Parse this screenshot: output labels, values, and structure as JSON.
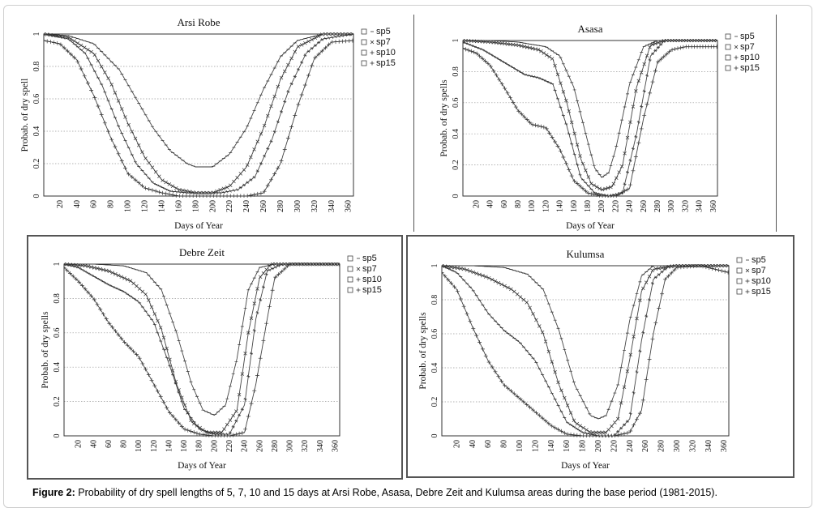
{
  "caption": {
    "label": "Figure 2:",
    "text": " Probability of dry spell lengths of 5, 7, 10 and 15 days at Arsi Robe, Asasa, Debre Zeit and Kulumsa areas during the base period (1981-2015)."
  },
  "chart_data": [
    {
      "type": "line",
      "title": "Arsi Robe",
      "xlabel": "Days of Year",
      "ylabel": "Probab. of dry spell",
      "xlim": [
        1,
        366
      ],
      "ylim": [
        0,
        1
      ],
      "xticks": [
        "20",
        "40",
        "60",
        "80",
        "100",
        "120",
        "140",
        "160",
        "180",
        "200",
        "220",
        "240",
        "260",
        "280",
        "300",
        "320",
        "340",
        "360"
      ],
      "yticks": [
        "0",
        "0.2",
        "0.4",
        "0.6",
        "0.8",
        "1"
      ],
      "grid": "horizontal dotted",
      "legend_position": "right",
      "series": [
        {
          "name": "sp5",
          "x": [
            1,
            30,
            60,
            90,
            110,
            130,
            150,
            170,
            180,
            200,
            220,
            240,
            260,
            280,
            300,
            330,
            366
          ],
          "y": [
            1,
            0.99,
            0.94,
            0.78,
            0.6,
            0.42,
            0.28,
            0.2,
            0.18,
            0.18,
            0.26,
            0.42,
            0.66,
            0.86,
            0.96,
            1,
            1
          ]
        },
        {
          "name": "sp7",
          "x": [
            1,
            30,
            60,
            80,
            100,
            120,
            140,
            160,
            180,
            200,
            220,
            240,
            260,
            280,
            300,
            330,
            366
          ],
          "y": [
            1,
            0.98,
            0.88,
            0.7,
            0.45,
            0.24,
            0.1,
            0.04,
            0.02,
            0.02,
            0.06,
            0.18,
            0.42,
            0.72,
            0.92,
            1,
            1
          ]
        },
        {
          "name": "sp10",
          "x": [
            1,
            30,
            50,
            70,
            90,
            110,
            130,
            150,
            170,
            190,
            210,
            230,
            250,
            270,
            290,
            310,
            330,
            366
          ],
          "y": [
            1,
            0.97,
            0.88,
            0.68,
            0.42,
            0.2,
            0.08,
            0.03,
            0.02,
            0.02,
            0.02,
            0.04,
            0.12,
            0.35,
            0.66,
            0.88,
            0.97,
            1
          ]
        },
        {
          "name": "sp15",
          "x": [
            1,
            20,
            40,
            60,
            80,
            100,
            120,
            140,
            160,
            180,
            200,
            220,
            240,
            260,
            280,
            300,
            320,
            340,
            366
          ],
          "y": [
            0.96,
            0.94,
            0.84,
            0.62,
            0.36,
            0.14,
            0.05,
            0.02,
            0,
            0,
            0,
            0,
            0,
            0.02,
            0.2,
            0.55,
            0.85,
            0.95,
            0.96
          ]
        }
      ]
    },
    {
      "type": "line",
      "title": "Asasa",
      "xlabel": "Days of Year",
      "ylabel": "Probab. of dry spells",
      "xlim": [
        1,
        366
      ],
      "ylim": [
        0,
        1
      ],
      "xticks": [
        "20",
        "40",
        "60",
        "80",
        "100",
        "120",
        "140",
        "160",
        "180",
        "200",
        "220",
        "240",
        "260",
        "280",
        "300",
        "320",
        "340",
        "360"
      ],
      "yticks": [
        "0",
        "0.2",
        "0.4",
        "0.6",
        "0.8",
        "1"
      ],
      "grid": "horizontal dotted",
      "legend_position": "right",
      "series": [
        {
          "name": "sp5",
          "x": [
            1,
            40,
            80,
            120,
            140,
            160,
            180,
            190,
            200,
            210,
            220,
            240,
            260,
            280,
            300,
            340,
            366
          ],
          "y": [
            1,
            1,
            0.99,
            0.96,
            0.9,
            0.7,
            0.35,
            0.18,
            0.12,
            0.15,
            0.3,
            0.72,
            0.96,
            1,
            1,
            1,
            1
          ]
        },
        {
          "name": "sp7",
          "x": [
            1,
            40,
            80,
            110,
            130,
            150,
            170,
            185,
            200,
            215,
            230,
            250,
            270,
            290,
            320,
            366
          ],
          "y": [
            1,
            0.99,
            0.97,
            0.94,
            0.88,
            0.6,
            0.24,
            0.08,
            0.04,
            0.06,
            0.2,
            0.7,
            0.97,
            1,
            1,
            1
          ]
        },
        {
          "name": "sp10",
          "x": [
            1,
            30,
            60,
            90,
            110,
            130,
            150,
            170,
            190,
            210,
            230,
            250,
            270,
            290,
            320,
            366
          ],
          "y": [
            0.99,
            0.94,
            0.86,
            0.78,
            0.76,
            0.72,
            0.45,
            0.12,
            0.02,
            0,
            0.02,
            0.4,
            0.9,
            1,
            1,
            1
          ]
        },
        {
          "name": "sp15",
          "x": [
            1,
            20,
            40,
            60,
            80,
            100,
            120,
            140,
            160,
            180,
            200,
            220,
            240,
            260,
            280,
            300,
            320,
            340,
            366
          ],
          "y": [
            0.95,
            0.92,
            0.84,
            0.7,
            0.55,
            0.46,
            0.44,
            0.3,
            0.1,
            0.02,
            0,
            0,
            0.05,
            0.5,
            0.86,
            0.94,
            0.96,
            0.96,
            0.96
          ]
        }
      ]
    },
    {
      "type": "line",
      "title": "Debre Zeit",
      "xlabel": "Days of Year",
      "ylabel": "Probab. of dry spells",
      "xlim": [
        1,
        366
      ],
      "ylim": [
        0,
        1
      ],
      "xticks": [
        "20",
        "40",
        "60",
        "80",
        "100",
        "120",
        "140",
        "160",
        "180",
        "200",
        "220",
        "240",
        "260",
        "280",
        "300",
        "320",
        "340",
        "360"
      ],
      "yticks": [
        "0",
        "0.2",
        "0.4",
        "0.6",
        "0.8",
        "1"
      ],
      "grid": "horizontal dotted",
      "legend_position": "right",
      "series": [
        {
          "name": "sp5",
          "x": [
            1,
            40,
            80,
            110,
            130,
            150,
            170,
            185,
            200,
            215,
            230,
            245,
            260,
            280,
            320,
            366
          ],
          "y": [
            1,
            1,
            0.99,
            0.95,
            0.85,
            0.6,
            0.3,
            0.15,
            0.12,
            0.18,
            0.45,
            0.85,
            0.98,
            1,
            1,
            1
          ]
        },
        {
          "name": "sp7",
          "x": [
            1,
            30,
            60,
            90,
            110,
            130,
            150,
            170,
            190,
            210,
            230,
            245,
            260,
            275,
            300,
            366
          ],
          "y": [
            1,
            0.99,
            0.96,
            0.9,
            0.82,
            0.62,
            0.3,
            0.08,
            0.02,
            0.02,
            0.15,
            0.6,
            0.92,
            1,
            1,
            1
          ]
        },
        {
          "name": "sp10",
          "x": [
            1,
            20,
            40,
            60,
            80,
            100,
            120,
            140,
            160,
            180,
            200,
            220,
            240,
            255,
            270,
            290,
            320,
            366
          ],
          "y": [
            1,
            0.98,
            0.93,
            0.88,
            0.84,
            0.78,
            0.66,
            0.42,
            0.16,
            0.04,
            0.01,
            0.01,
            0.18,
            0.68,
            0.96,
            1,
            1,
            1
          ]
        },
        {
          "name": "sp15",
          "x": [
            1,
            20,
            40,
            60,
            80,
            100,
            120,
            140,
            160,
            180,
            200,
            220,
            240,
            255,
            270,
            280,
            300,
            330,
            366
          ],
          "y": [
            0.98,
            0.9,
            0.8,
            0.66,
            0.55,
            0.46,
            0.3,
            0.14,
            0.04,
            0.01,
            0,
            0,
            0.02,
            0.3,
            0.68,
            0.92,
            1,
            1,
            1
          ]
        }
      ]
    },
    {
      "type": "line",
      "title": "Kulumsa",
      "xlabel": "Days of Year",
      "ylabel": "Probab. of dry spells",
      "xlim": [
        1,
        366
      ],
      "ylim": [
        0,
        1
      ],
      "xticks": [
        "20",
        "40",
        "60",
        "80",
        "100",
        "120",
        "140",
        "160",
        "180",
        "200",
        "220",
        "240",
        "260",
        "280",
        "300",
        "320",
        "340",
        "360"
      ],
      "yticks": [
        "0",
        "0.2",
        "0.4",
        "0.6",
        "0.8",
        "1"
      ],
      "grid": "horizontal dotted",
      "legend_position": "right",
      "series": [
        {
          "name": "sp5",
          "x": [
            1,
            40,
            80,
            110,
            130,
            150,
            170,
            190,
            200,
            210,
            225,
            240,
            255,
            270,
            290,
            320,
            366
          ],
          "y": [
            1,
            1,
            0.99,
            0.95,
            0.86,
            0.62,
            0.3,
            0.12,
            0.1,
            0.12,
            0.3,
            0.68,
            0.94,
            1,
            1,
            1,
            1
          ]
        },
        {
          "name": "sp7",
          "x": [
            1,
            30,
            60,
            90,
            110,
            130,
            150,
            170,
            190,
            210,
            225,
            240,
            255,
            270,
            300,
            366
          ],
          "y": [
            1,
            0.98,
            0.93,
            0.86,
            0.78,
            0.6,
            0.3,
            0.08,
            0.02,
            0.02,
            0.1,
            0.45,
            0.85,
            0.98,
            1,
            1
          ]
        },
        {
          "name": "sp10",
          "x": [
            1,
            20,
            40,
            60,
            80,
            100,
            120,
            140,
            160,
            180,
            200,
            220,
            240,
            255,
            270,
            290,
            320,
            366
          ],
          "y": [
            1,
            0.96,
            0.86,
            0.72,
            0.62,
            0.55,
            0.44,
            0.26,
            0.08,
            0.02,
            0,
            0,
            0.1,
            0.56,
            0.92,
            1,
            1,
            1
          ]
        },
        {
          "name": "sp15",
          "x": [
            1,
            20,
            40,
            60,
            80,
            100,
            120,
            140,
            160,
            180,
            200,
            220,
            240,
            255,
            270,
            285,
            300,
            330,
            366
          ],
          "y": [
            0.96,
            0.86,
            0.64,
            0.44,
            0.3,
            0.22,
            0.14,
            0.06,
            0.01,
            0,
            0,
            0,
            0.02,
            0.15,
            0.6,
            0.92,
            0.99,
            1,
            0.96
          ]
        }
      ]
    }
  ]
}
